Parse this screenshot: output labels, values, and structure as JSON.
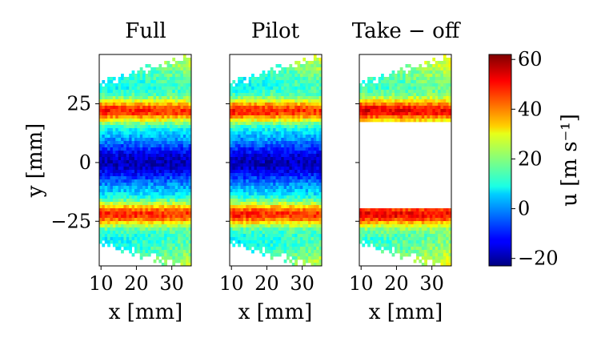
{
  "chart_data": {
    "type": "heatmap",
    "panels": [
      {
        "title": "Full",
        "xlabel": "x [mm]",
        "ylabel": "y [mm]",
        "mode": "full"
      },
      {
        "title": "Pilot",
        "xlabel": "x [mm]",
        "ylabel": "",
        "mode": "pilot"
      },
      {
        "title": "Take − off",
        "xlabel": "x [mm]",
        "ylabel": "",
        "mode": "takeoff"
      }
    ],
    "xlim": [
      9.5,
      35.5
    ],
    "ylim": [
      -44,
      46
    ],
    "x_ticks": [
      10,
      20,
      30
    ],
    "y_ticks": [
      25,
      0,
      -25
    ],
    "y_tick_labels": [
      "25",
      "0",
      "−25"
    ],
    "grid": false,
    "profile": {
      "jet_centers_mm": [
        22,
        -22
      ],
      "jet_peak_velocity": 50,
      "jet_halfwidth_mm": 5,
      "center_velocity": -18,
      "center_halfwidth_mm": 9,
      "outer_velocity": 8,
      "takeoff_missing_band_mm": [
        -20,
        18
      ]
    },
    "colorbar": {
      "label": "u [m s⁻¹]",
      "colormap": "jet",
      "vmin": -23,
      "vmax": 62,
      "ticks": [
        60,
        40,
        20,
        0,
        -20
      ],
      "tick_labels": [
        "60",
        "40",
        "20",
        "0",
        "−20"
      ]
    }
  }
}
